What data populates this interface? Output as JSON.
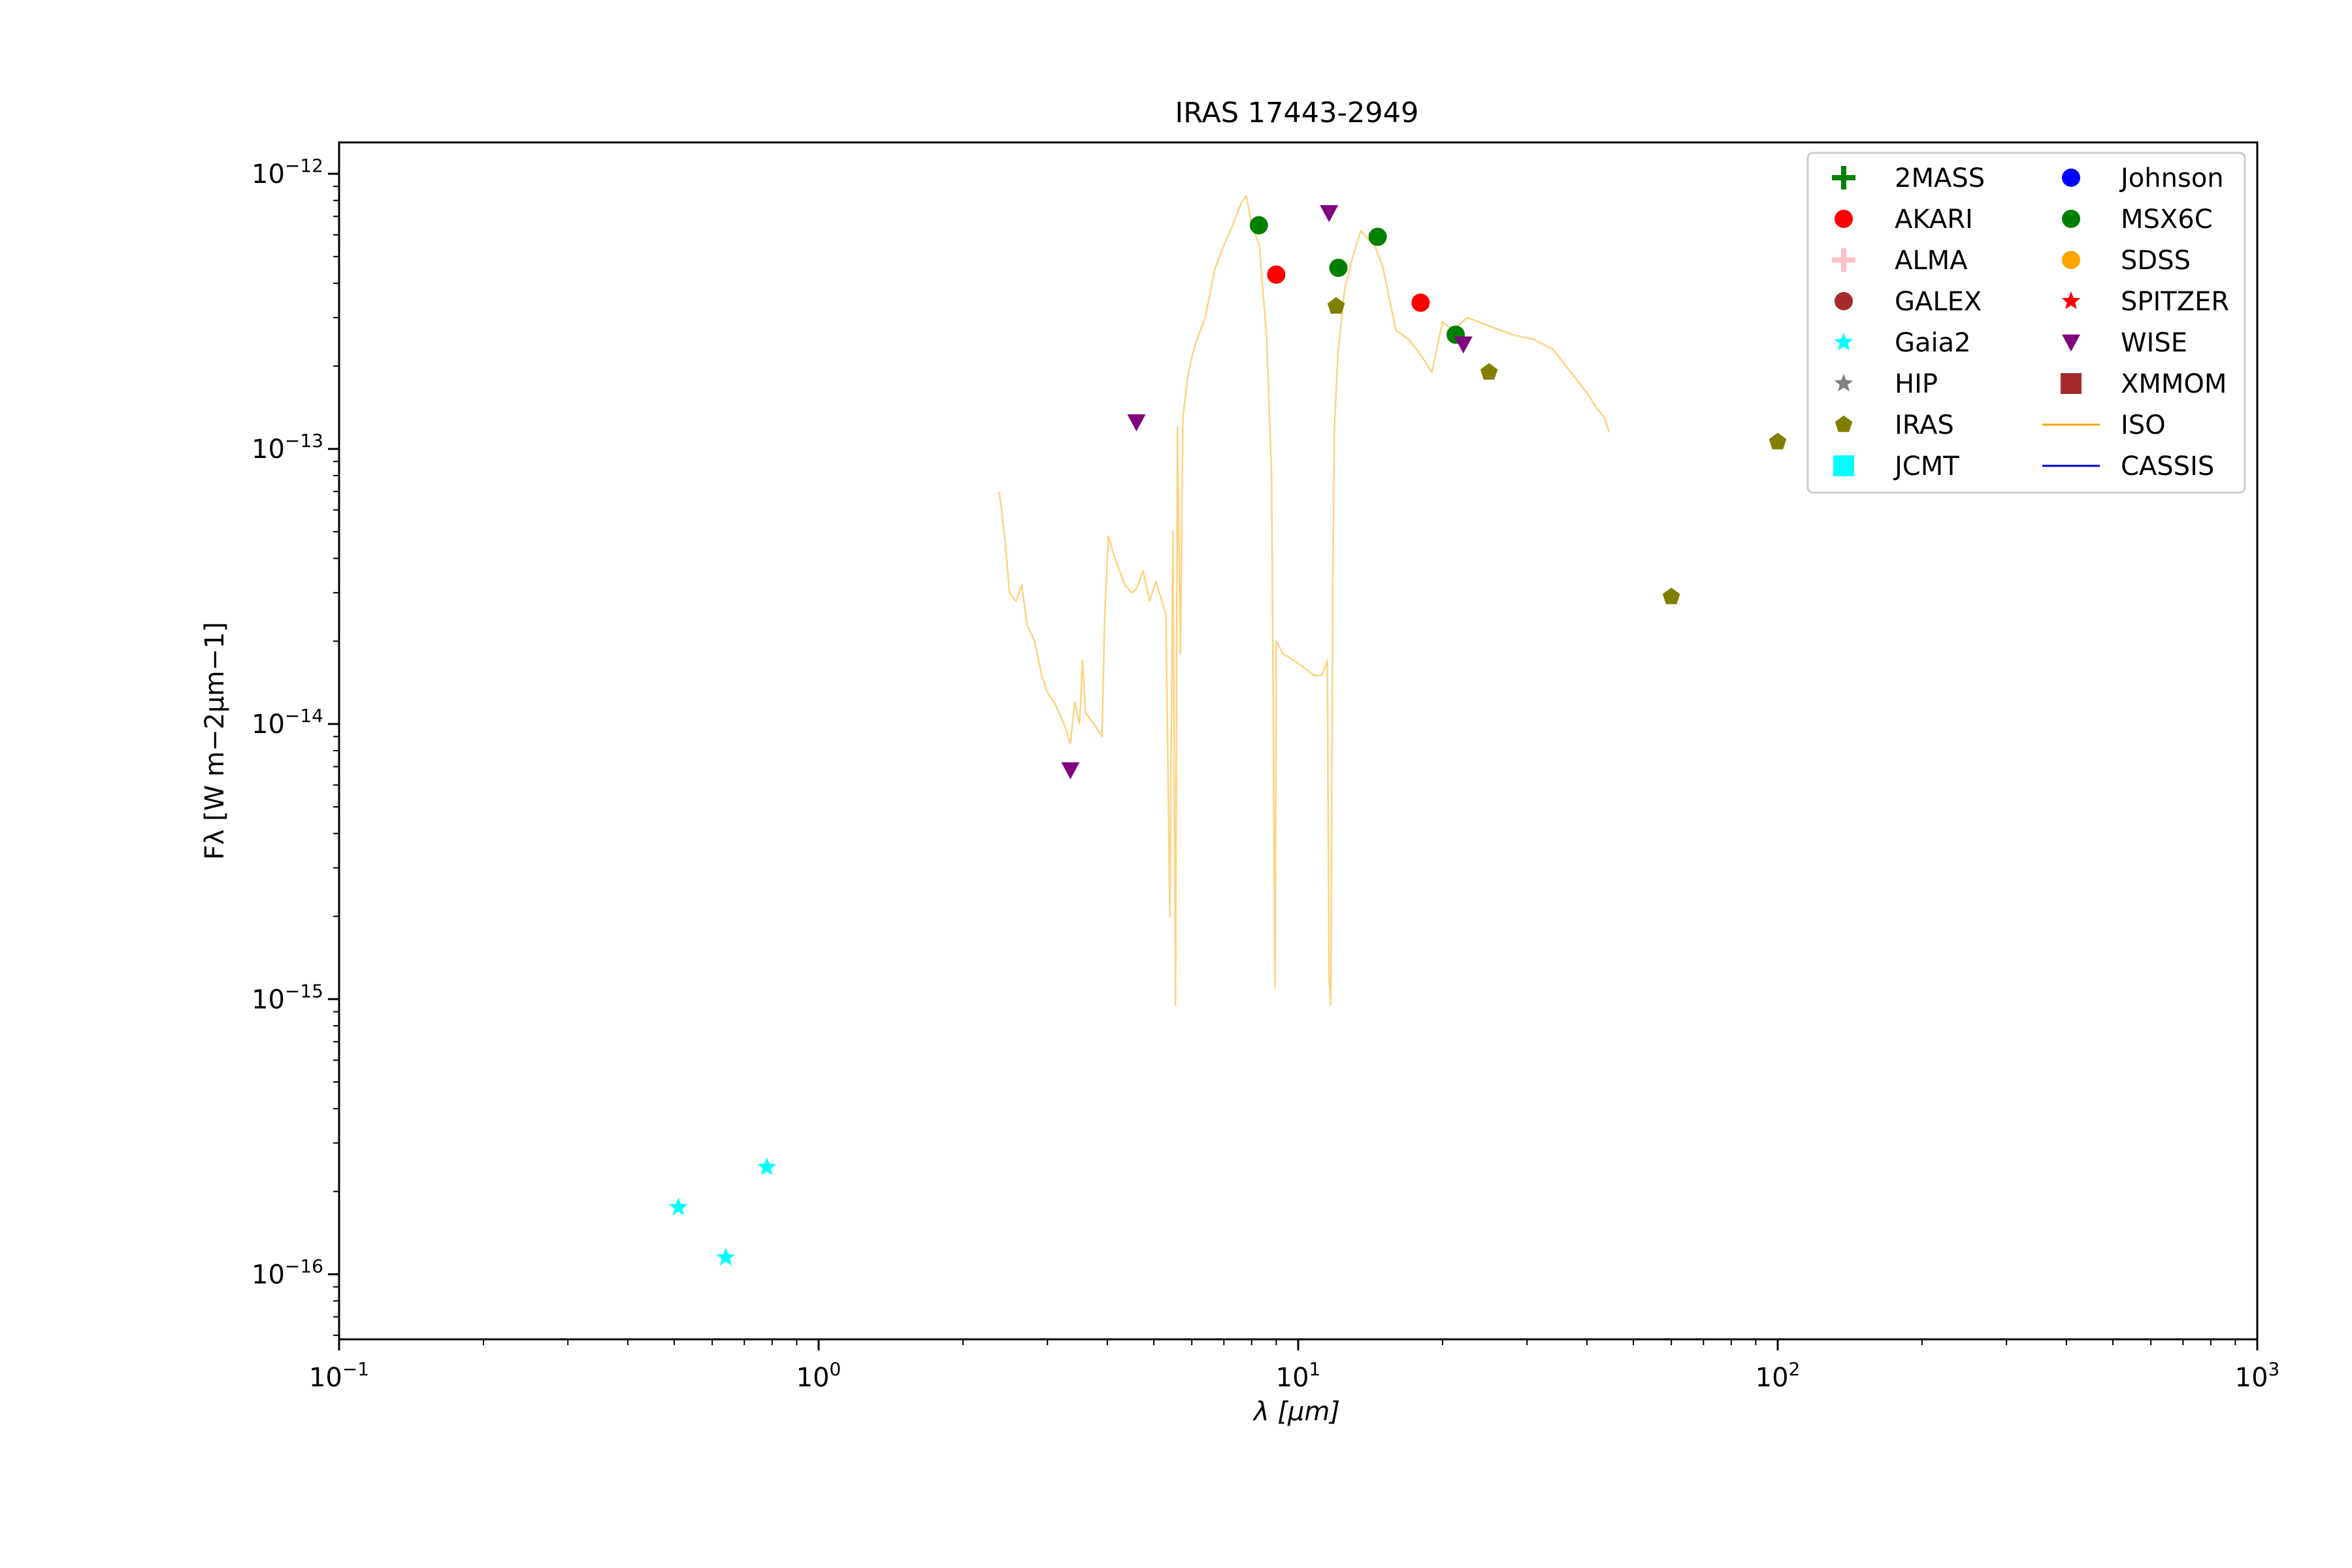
{
  "chart_data": {
    "type": "scatter",
    "title": "IRAS 17443-2949",
    "xlabel": "λ [μm]",
    "ylabel": "Fλ [W m−2μm−1]",
    "xscale": "log",
    "yscale": "log",
    "xlim": [
      0.1,
      1000
    ],
    "ylim": [
      5.8e-17,
      1.3e-12
    ],
    "x_ticks": [
      {
        "value": 0.1,
        "base": "10",
        "exp": "−1"
      },
      {
        "value": 1,
        "base": "10",
        "exp": "0"
      },
      {
        "value": 10,
        "base": "10",
        "exp": "1"
      },
      {
        "value": 100,
        "base": "10",
        "exp": "2"
      },
      {
        "value": 1000,
        "base": "10",
        "exp": "3"
      }
    ],
    "y_ticks": [
      {
        "value": 1e-16,
        "base": "10",
        "exp": "−16"
      },
      {
        "value": 1e-15,
        "base": "10",
        "exp": "−15"
      },
      {
        "value": 1e-14,
        "base": "10",
        "exp": "−14"
      },
      {
        "value": 1e-13,
        "base": "10",
        "exp": "−13"
      },
      {
        "value": 1e-12,
        "base": "10",
        "exp": "−12"
      }
    ],
    "grid": false,
    "legend_position": "top-right",
    "legend": [
      {
        "name": "2MASS",
        "marker": "plus",
        "color": "#008000"
      },
      {
        "name": "AKARI",
        "marker": "circle",
        "color": "#ff0000"
      },
      {
        "name": "ALMA",
        "marker": "plus",
        "color": "#ffc0cb"
      },
      {
        "name": "GALEX",
        "marker": "circle",
        "color": "#a52a2a"
      },
      {
        "name": "Gaia2",
        "marker": "star",
        "color": "#00ffff"
      },
      {
        "name": "HIP",
        "marker": "star",
        "color": "#808080"
      },
      {
        "name": "IRAS",
        "marker": "pentagon",
        "color": "#808000"
      },
      {
        "name": "JCMT",
        "marker": "square",
        "color": "#00ffff"
      },
      {
        "name": "Johnson",
        "marker": "circle",
        "color": "#0000ff"
      },
      {
        "name": "MSX6C",
        "marker": "circle",
        "color": "#008000"
      },
      {
        "name": "SDSS",
        "marker": "circle",
        "color": "#ffa500"
      },
      {
        "name": "SPITZER",
        "marker": "star",
        "color": "#ff0000"
      },
      {
        "name": "WISE",
        "marker": "triangle-down",
        "color": "#800080"
      },
      {
        "name": "XMMOM",
        "marker": "square",
        "color": "#a52a2a"
      },
      {
        "name": "ISO",
        "marker": "line",
        "color": "#ffa500"
      },
      {
        "name": "CASSIS",
        "marker": "line",
        "color": "#0000cd"
      }
    ],
    "series": [
      {
        "name": "AKARI",
        "marker": "circle",
        "color": "#ff0000",
        "points": [
          [
            9.0,
            4.3e-13
          ],
          [
            18.0,
            3.4e-13
          ]
        ]
      },
      {
        "name": "Gaia2",
        "marker": "star",
        "color": "#00ffff",
        "points": [
          [
            0.51,
            1.75e-16
          ],
          [
            0.64,
            1.15e-16
          ],
          [
            0.78,
            2.45e-16
          ]
        ]
      },
      {
        "name": "IRAS",
        "marker": "pentagon",
        "color": "#808000",
        "points": [
          [
            12,
            3.3e-13
          ],
          [
            25,
            1.9e-13
          ],
          [
            60,
            2.9e-14
          ],
          [
            100,
            1.06e-13
          ]
        ]
      },
      {
        "name": "MSX6C",
        "marker": "circle",
        "color": "#008000",
        "points": [
          [
            8.28,
            6.5e-13
          ],
          [
            12.13,
            4.55e-13
          ],
          [
            14.65,
            5.9e-13
          ],
          [
            21.3,
            2.6e-13
          ]
        ]
      },
      {
        "name": "WISE",
        "marker": "triangle-down",
        "color": "#800080",
        "points": [
          [
            3.35,
            6.8e-15
          ],
          [
            4.6,
            1.25e-13
          ],
          [
            11.6,
            7.2e-13
          ],
          [
            22.1,
            2.4e-13
          ]
        ]
      }
    ],
    "iso_spectrum": {
      "name": "ISO",
      "color": "#ffa500",
      "points": [
        [
          2.38,
          7e-14
        ],
        [
          2.45,
          4.6e-14
        ],
        [
          2.5,
          3e-14
        ],
        [
          2.58,
          2.8e-14
        ],
        [
          2.65,
          3.2e-14
        ],
        [
          2.72,
          2.3e-14
        ],
        [
          2.82,
          2e-14
        ],
        [
          2.92,
          1.5e-14
        ],
        [
          3.0,
          1.3e-14
        ],
        [
          3.1,
          1.2e-14
        ],
        [
          3.25,
          1e-14
        ],
        [
          3.35,
          8.5e-15
        ],
        [
          3.42,
          1.2e-14
        ],
        [
          3.5,
          1e-14
        ],
        [
          3.55,
          1.7e-14
        ],
        [
          3.6,
          1.1e-14
        ],
        [
          3.75,
          1e-14
        ],
        [
          3.9,
          9e-15
        ],
        [
          3.95,
          2.5e-14
        ],
        [
          4.02,
          4.8e-14
        ],
        [
          4.15,
          4e-14
        ],
        [
          4.35,
          3.2e-14
        ],
        [
          4.5,
          3e-14
        ],
        [
          4.6,
          3.1e-14
        ],
        [
          4.75,
          3.6e-14
        ],
        [
          4.9,
          2.8e-14
        ],
        [
          5.05,
          3.3e-14
        ],
        [
          5.2,
          2.8e-14
        ],
        [
          5.3,
          2.5e-14
        ],
        [
          5.4,
          2e-15
        ],
        [
          5.48,
          5e-14
        ],
        [
          5.55,
          9.5e-16
        ],
        [
          5.6,
          1.2e-13
        ],
        [
          5.68,
          1.8e-14
        ],
        [
          5.75,
          1.3e-13
        ],
        [
          5.9,
          1.9e-13
        ],
        [
          6.1,
          2.4e-13
        ],
        [
          6.4,
          3e-13
        ],
        [
          6.7,
          4.5e-13
        ],
        [
          7.0,
          5.5e-13
        ],
        [
          7.3,
          6.5e-13
        ],
        [
          7.6,
          7.8e-13
        ],
        [
          7.8,
          8.3e-13
        ],
        [
          8.0,
          6.5e-13
        ],
        [
          8.3,
          5.5e-13
        ],
        [
          8.6,
          2.5e-13
        ],
        [
          8.8,
          8e-14
        ],
        [
          8.95,
          1.1e-15
        ],
        [
          9.0,
          2e-14
        ],
        [
          9.3,
          1.8e-14
        ],
        [
          9.8,
          1.7e-14
        ],
        [
          10.3,
          1.6e-14
        ],
        [
          10.8,
          1.5e-14
        ],
        [
          11.2,
          1.5e-14
        ],
        [
          11.5,
          1.7e-14
        ],
        [
          11.6,
          1.2e-15
        ],
        [
          11.7,
          9.5e-16
        ],
        [
          11.8,
          3e-14
        ],
        [
          11.9,
          1.2e-13
        ],
        [
          12.1,
          2.2e-13
        ],
        [
          12.5,
          3.8e-13
        ],
        [
          13.0,
          5e-13
        ],
        [
          13.5,
          6.2e-13
        ],
        [
          14.0,
          5.8e-13
        ],
        [
          14.5,
          5.4e-13
        ],
        [
          15.0,
          4.6e-13
        ],
        [
          15.5,
          3.5e-13
        ],
        [
          16.0,
          2.7e-13
        ],
        [
          17.0,
          2.5e-13
        ],
        [
          18.0,
          2.2e-13
        ],
        [
          19.0,
          1.9e-13
        ],
        [
          20.0,
          2.9e-13
        ],
        [
          21.0,
          2.7e-13
        ],
        [
          22.5,
          3e-13
        ],
        [
          25.0,
          2.8e-13
        ],
        [
          28.0,
          2.6e-13
        ],
        [
          31.0,
          2.5e-13
        ],
        [
          34.0,
          2.3e-13
        ],
        [
          37.0,
          1.9e-13
        ],
        [
          40.0,
          1.6e-13
        ],
        [
          42.0,
          1.4e-13
        ],
        [
          43.5,
          1.3e-13
        ],
        [
          44.5,
          1.15e-13
        ]
      ]
    }
  }
}
